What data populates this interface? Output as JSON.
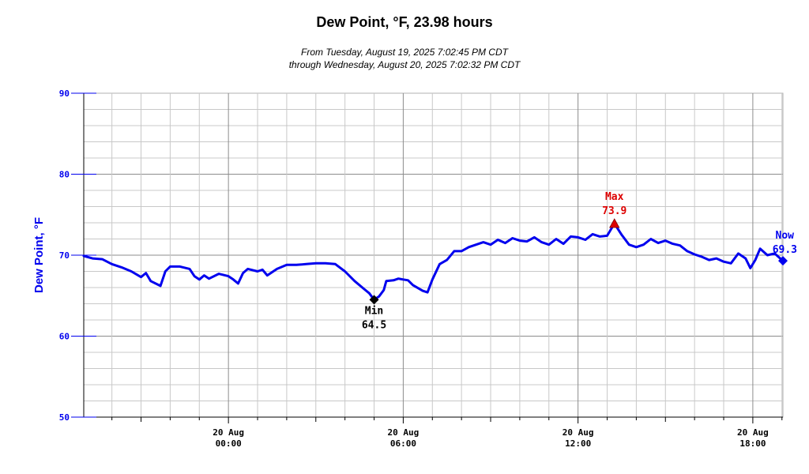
{
  "chart_data": {
    "type": "line",
    "title": "Dew Point, °F, 23.98 hours",
    "subtitle_lines": [
      "From Tuesday, August 19, 2025 7:02:45 PM CDT",
      "through Wednesday, August 20, 2025 7:02:32 PM CDT"
    ],
    "xlabel": "",
    "ylabel": "Dew Point, °F",
    "ylim": [
      50,
      90
    ],
    "yticks": [
      "50",
      "60",
      "70",
      "80",
      "90"
    ],
    "xlim": [
      "2025-08-19 19:02",
      "2025-08-20 19:02"
    ],
    "xticks": [
      {
        "x": "2025-08-20 00:00",
        "line1": "20 Aug",
        "line2": "00:00"
      },
      {
        "x": "2025-08-20 06:00",
        "line1": "20 Aug",
        "line2": "06:00"
      },
      {
        "x": "2025-08-20 12:00",
        "line1": "20 Aug",
        "line2": "12:00"
      },
      {
        "x": "2025-08-20 18:00",
        "line1": "20 Aug",
        "line2": "18:00"
      }
    ],
    "grid": true,
    "series": [
      {
        "color": "#0000ee",
        "points": [
          [
            "2025-08-19 19:02",
            69.9
          ],
          [
            "2025-08-19 19:20",
            69.6
          ],
          [
            "2025-08-19 19:40",
            69.5
          ],
          [
            "2025-08-19 20:00",
            68.9
          ],
          [
            "2025-08-19 20:20",
            68.5
          ],
          [
            "2025-08-19 20:40",
            68.0
          ],
          [
            "2025-08-19 21:00",
            67.3
          ],
          [
            "2025-08-19 21:10",
            67.8
          ],
          [
            "2025-08-19 21:20",
            66.8
          ],
          [
            "2025-08-19 21:40",
            66.2
          ],
          [
            "2025-08-19 21:50",
            68.0
          ],
          [
            "2025-08-19 22:00",
            68.6
          ],
          [
            "2025-08-19 22:20",
            68.6
          ],
          [
            "2025-08-19 22:40",
            68.3
          ],
          [
            "2025-08-19 22:50",
            67.4
          ],
          [
            "2025-08-19 23:00",
            67.0
          ],
          [
            "2025-08-19 23:10",
            67.5
          ],
          [
            "2025-08-19 23:20",
            67.1
          ],
          [
            "2025-08-19 23:40",
            67.7
          ],
          [
            "2025-08-20 00:00",
            67.4
          ],
          [
            "2025-08-20 00:10",
            67.0
          ],
          [
            "2025-08-20 00:20",
            66.5
          ],
          [
            "2025-08-20 00:30",
            67.8
          ],
          [
            "2025-08-20 00:40",
            68.3
          ],
          [
            "2025-08-20 01:00",
            68.0
          ],
          [
            "2025-08-20 01:10",
            68.2
          ],
          [
            "2025-08-20 01:20",
            67.5
          ],
          [
            "2025-08-20 01:40",
            68.3
          ],
          [
            "2025-08-20 02:00",
            68.8
          ],
          [
            "2025-08-20 02:20",
            68.8
          ],
          [
            "2025-08-20 02:40",
            68.9
          ],
          [
            "2025-08-20 03:00",
            69.0
          ],
          [
            "2025-08-20 03:20",
            69.0
          ],
          [
            "2025-08-20 03:40",
            68.9
          ],
          [
            "2025-08-20 04:00",
            68.0
          ],
          [
            "2025-08-20 04:20",
            66.8
          ],
          [
            "2025-08-20 04:40",
            65.8
          ],
          [
            "2025-08-20 04:50",
            65.3
          ],
          [
            "2025-08-20 05:00",
            64.5
          ],
          [
            "2025-08-20 05:10",
            64.9
          ],
          [
            "2025-08-20 05:20",
            65.7
          ],
          [
            "2025-08-20 05:25",
            66.8
          ],
          [
            "2025-08-20 05:40",
            66.9
          ],
          [
            "2025-08-20 05:50",
            67.1
          ],
          [
            "2025-08-20 06:00",
            67.0
          ],
          [
            "2025-08-20 06:10",
            66.9
          ],
          [
            "2025-08-20 06:20",
            66.3
          ],
          [
            "2025-08-20 06:40",
            65.6
          ],
          [
            "2025-08-20 06:50",
            65.4
          ],
          [
            "2025-08-20 07:00",
            67.0
          ],
          [
            "2025-08-20 07:15",
            68.9
          ],
          [
            "2025-08-20 07:30",
            69.4
          ],
          [
            "2025-08-20 07:45",
            70.5
          ],
          [
            "2025-08-20 08:00",
            70.5
          ],
          [
            "2025-08-20 08:15",
            71.0
          ],
          [
            "2025-08-20 08:30",
            71.3
          ],
          [
            "2025-08-20 08:45",
            71.6
          ],
          [
            "2025-08-20 09:00",
            71.3
          ],
          [
            "2025-08-20 09:15",
            71.9
          ],
          [
            "2025-08-20 09:30",
            71.5
          ],
          [
            "2025-08-20 09:45",
            72.1
          ],
          [
            "2025-08-20 10:00",
            71.8
          ],
          [
            "2025-08-20 10:15",
            71.7
          ],
          [
            "2025-08-20 10:30",
            72.2
          ],
          [
            "2025-08-20 10:45",
            71.6
          ],
          [
            "2025-08-20 11:00",
            71.3
          ],
          [
            "2025-08-20 11:15",
            72.0
          ],
          [
            "2025-08-20 11:30",
            71.4
          ],
          [
            "2025-08-20 11:45",
            72.3
          ],
          [
            "2025-08-20 12:00",
            72.2
          ],
          [
            "2025-08-20 12:15",
            71.9
          ],
          [
            "2025-08-20 12:30",
            72.6
          ],
          [
            "2025-08-20 12:45",
            72.3
          ],
          [
            "2025-08-20 13:00",
            72.4
          ],
          [
            "2025-08-20 13:15",
            73.9
          ],
          [
            "2025-08-20 13:30",
            72.5
          ],
          [
            "2025-08-20 13:45",
            71.3
          ],
          [
            "2025-08-20 14:00",
            71.0
          ],
          [
            "2025-08-20 14:15",
            71.3
          ],
          [
            "2025-08-20 14:30",
            72.0
          ],
          [
            "2025-08-20 14:45",
            71.5
          ],
          [
            "2025-08-20 15:00",
            71.8
          ],
          [
            "2025-08-20 15:15",
            71.4
          ],
          [
            "2025-08-20 15:30",
            71.2
          ],
          [
            "2025-08-20 15:45",
            70.5
          ],
          [
            "2025-08-20 16:00",
            70.1
          ],
          [
            "2025-08-20 16:15",
            69.8
          ],
          [
            "2025-08-20 16:30",
            69.4
          ],
          [
            "2025-08-20 16:45",
            69.6
          ],
          [
            "2025-08-20 17:00",
            69.2
          ],
          [
            "2025-08-20 17:15",
            69.0
          ],
          [
            "2025-08-20 17:30",
            70.2
          ],
          [
            "2025-08-20 17:45",
            69.6
          ],
          [
            "2025-08-20 17:55",
            68.4
          ],
          [
            "2025-08-20 18:05",
            69.4
          ],
          [
            "2025-08-20 18:15",
            70.8
          ],
          [
            "2025-08-20 18:30",
            70.0
          ],
          [
            "2025-08-20 18:45",
            70.2
          ],
          [
            "2025-08-20 19:02",
            69.3
          ]
        ]
      }
    ],
    "annotations": {
      "min": {
        "label": "Min",
        "value": "64.5",
        "x": "2025-08-20 05:00",
        "y": 64.5,
        "color": "#000000"
      },
      "max": {
        "label": "Max",
        "value": "73.9",
        "x": "2025-08-20 13:15",
        "y": 73.9,
        "color": "#dd0000"
      },
      "now": {
        "label": "Now",
        "value": "69.3",
        "x": "2025-08-20 19:02",
        "y": 69.3,
        "color": "#0000ee"
      }
    },
    "colors": {
      "line": "#0000ee",
      "axis": "#0000ee",
      "grid": "#c8c8c8",
      "grid_major": "#8c8c8c"
    }
  }
}
